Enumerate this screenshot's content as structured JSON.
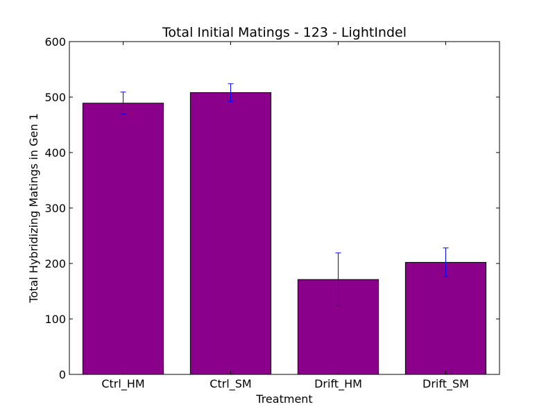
{
  "chart_data": {
    "type": "bar",
    "title": "Total Initial Matings - 123 - LightIndel",
    "xlabel": "Treatment",
    "ylabel": "Total Hybridizing Matings in Gen 1",
    "categories": [
      "Ctrl_HM",
      "Ctrl_SM",
      "Drift_HM",
      "Drift_SM"
    ],
    "values": [
      489,
      508,
      171,
      202
    ],
    "errors": [
      20,
      16,
      48,
      26
    ],
    "ylim": [
      0,
      600
    ],
    "yticks": [
      "0",
      "100",
      "200",
      "300",
      "400",
      "500",
      "600"
    ],
    "grid": false,
    "legend": "none",
    "colors": {
      "bar_fill": "#8b008b",
      "bar_edge": "#000000",
      "errorbar": "#0000ff"
    }
  }
}
